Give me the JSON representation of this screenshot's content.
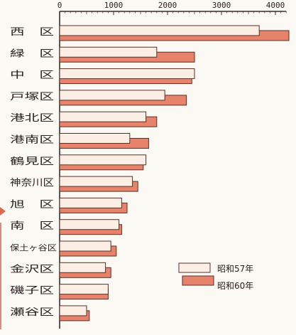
{
  "chart_data": {
    "type": "bar",
    "orientation": "horizontal",
    "categories": [
      "西　区",
      "緑　区",
      "中　区",
      "戸塚区",
      "港北区",
      "港南区",
      "鶴見区",
      "神奈川区",
      "旭　区",
      "南　区",
      "保土ヶ谷区",
      "金沢区",
      "磯子区",
      "瀬谷区"
    ],
    "series": [
      {
        "name": "昭和57年",
        "color": "#fbeee4",
        "values": [
          3700,
          1800,
          2500,
          1950,
          1600,
          1300,
          1600,
          1350,
          1150,
          1100,
          950,
          850,
          900,
          500
        ]
      },
      {
        "name": "昭和60年",
        "color": "#e8836b",
        "values": [
          4250,
          2500,
          2450,
          2350,
          1800,
          1650,
          1550,
          1450,
          1250,
          1150,
          1050,
          950,
          900,
          550
        ]
      }
    ],
    "xlim": [
      0,
      4200
    ],
    "x_ticks": [
      "0",
      "1000",
      "2000",
      "3000",
      "4000"
    ],
    "axis_position": "top",
    "grid": false,
    "legend_position": "bottom-right",
    "title": "",
    "xlabel": "",
    "ylabel": ""
  }
}
